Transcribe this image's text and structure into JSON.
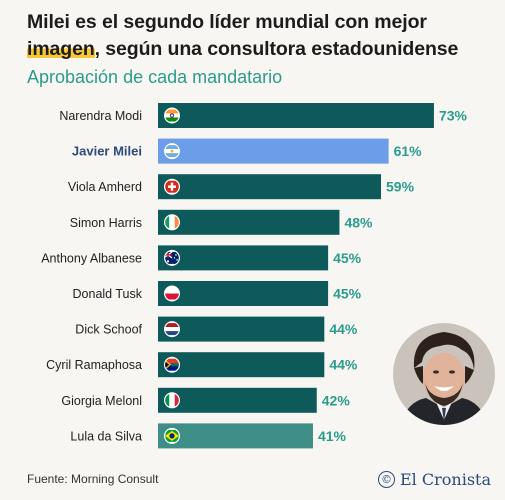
{
  "headline": {
    "part1": "Milei es el segundo líder mundial con mejor",
    "part2": "imagen",
    "part3": ", según una consultora estadounidense"
  },
  "subtitle": "Aprobación de cada mandatario",
  "source": "Fuente: Morning Consult",
  "brand": {
    "name": "El Cronista",
    "mark": "©"
  },
  "colors": {
    "bar_default": "#0e5a5a",
    "bar_highlight": "#6b9de8",
    "bar_last": "#3f8f88",
    "value_text": "#2b9c8c",
    "highlight_text": "#2c4a7a"
  },
  "chart_data": {
    "type": "bar",
    "orientation": "horizontal",
    "categories": [
      "Narendra Modi",
      "Javier Milei",
      "Viola Amherd",
      "Simon Harris",
      "Anthony Albanese",
      "Donald Tusk",
      "Dick Schoof",
      "Cyril Ramaphosa",
      "Giorgia Melonl",
      "Lula da Silva"
    ],
    "values": [
      73,
      61,
      59,
      48,
      45,
      45,
      44,
      44,
      42,
      41
    ],
    "value_labels": [
      "73%",
      "61%",
      "59%",
      "48%",
      "45%",
      "45%",
      "44%",
      "44%",
      "42%",
      "41%"
    ],
    "flags": [
      "india",
      "argentina",
      "switzerland",
      "ireland",
      "australia",
      "poland",
      "netherlands",
      "south-africa",
      "italy",
      "brazil"
    ],
    "highlight_index": 1
  }
}
